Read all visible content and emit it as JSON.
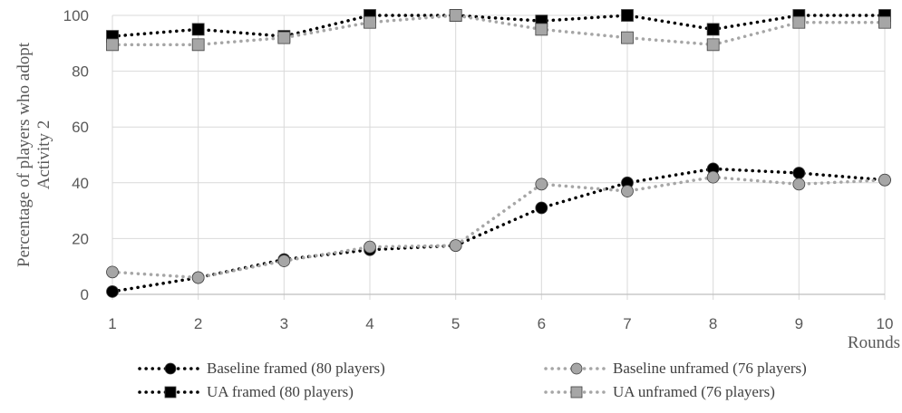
{
  "chart_data": {
    "type": "line",
    "title": "",
    "xlabel": "Rounds",
    "ylabel": "Percentage of players who adopt Activity 2",
    "ylabel_lines": [
      "Percentage of players who adopt",
      "Activity 2"
    ],
    "x": [
      1,
      2,
      3,
      4,
      5,
      6,
      7,
      8,
      9,
      10
    ],
    "xlim": [
      1,
      10
    ],
    "ylim": [
      0,
      100
    ],
    "yticks": [
      0,
      20,
      40,
      60,
      80,
      100
    ],
    "grid": true,
    "legend_position": "bottom",
    "series": [
      {
        "name": "Baseline framed (80 players)",
        "marker": "circle",
        "color": "#000000",
        "values": [
          1,
          6,
          12.5,
          16,
          17.5,
          31,
          40,
          45,
          43.5,
          41
        ]
      },
      {
        "name": "Baseline unframed (76 players)",
        "marker": "circle",
        "color": "#a6a6a6",
        "values": [
          8,
          6,
          12,
          17,
          17.5,
          39.5,
          37,
          42,
          39.5,
          41
        ]
      },
      {
        "name": "UA framed (80 players)",
        "marker": "square",
        "color": "#000000",
        "values": [
          92.5,
          95,
          92.5,
          100,
          100,
          98,
          100,
          95,
          100,
          100
        ]
      },
      {
        "name": "UA unframed (76 players)",
        "marker": "square",
        "color": "#a6a6a6",
        "values": [
          89.5,
          89.5,
          92,
          97.5,
          100,
          95,
          92,
          89.5,
          97.5,
          97.5
        ]
      }
    ]
  }
}
